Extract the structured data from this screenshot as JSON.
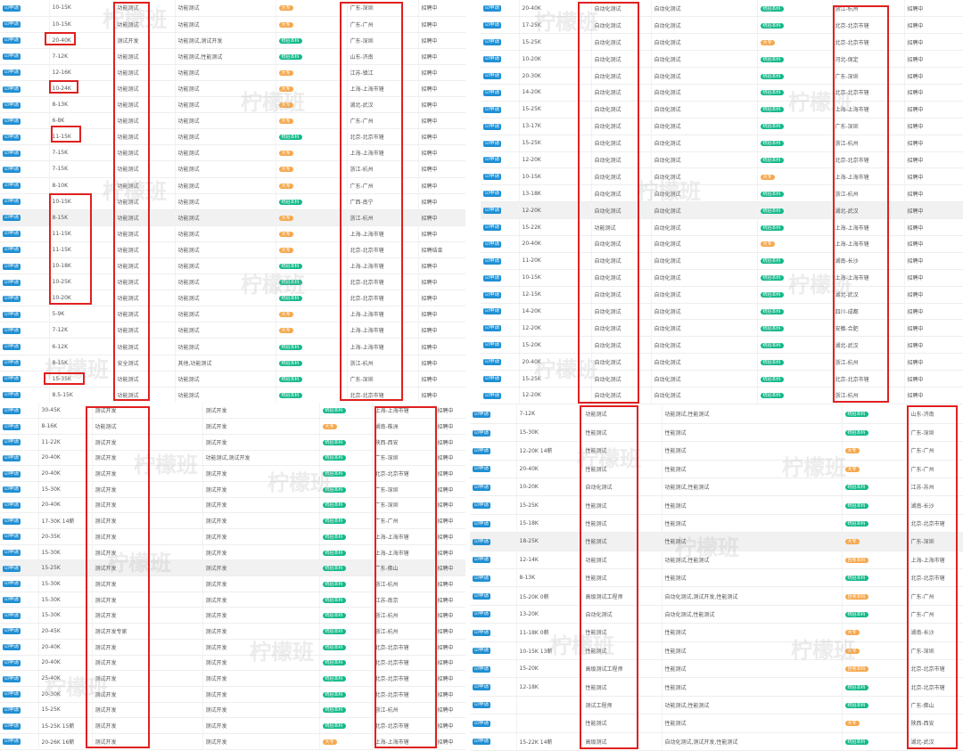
{
  "apply_label": "申请",
  "colors": {
    "apply": "#1e8fd4",
    "green": "#13b889",
    "orange": "#f5a84d",
    "highlight": "#e02020"
  },
  "badge_colors": {
    "统招本科": "green",
    "大专": "orange",
    "自考本科": "orange"
  },
  "watermark": "柠檬班",
  "panels": [
    {
      "rows": [
        [
          "10-15K",
          "功能测试",
          "功能测试",
          "大专",
          "广东-深圳",
          "招聘中"
        ],
        [
          "10-15K",
          "功能测试",
          "功能测试",
          "大专",
          "广东-广州",
          "招聘中"
        ],
        [
          "20-40K",
          "测试开发",
          "功能测试,测试开发",
          "统招本科",
          "广东-深圳",
          "招聘中"
        ],
        [
          "7-12K",
          "功能测试",
          "功能测试,性能测试",
          "统招本科",
          "山东-济南",
          "招聘中"
        ],
        [
          "12-16K",
          "功能测试",
          "功能测试",
          "大专",
          "江苏-镇江",
          "招聘中"
        ],
        [
          "10-24K",
          "功能测试",
          "功能测试",
          "大专",
          "上海-上海市辖",
          "招聘中"
        ],
        [
          "8-13K",
          "功能测试",
          "功能测试",
          "大专",
          "湖北-武汉",
          "招聘中"
        ],
        [
          "6-8K",
          "功能测试",
          "功能测试",
          "大专",
          "广东-广州",
          "招聘中"
        ],
        [
          "11-15K",
          "功能测试",
          "功能测试",
          "统招本科",
          "北京-北京市辖",
          "招聘中"
        ],
        [
          "7-15K",
          "功能测试",
          "功能测试",
          "大专",
          "上海-上海市辖",
          "招聘中"
        ],
        [
          "7-15K",
          "功能测试",
          "功能测试",
          "大专",
          "浙江-杭州",
          "招聘中"
        ],
        [
          "8-10K",
          "功能测试",
          "功能测试",
          "大专",
          "广东-广州",
          "招聘中"
        ],
        [
          "10-15K",
          "功能测试",
          "功能测试",
          "统招本科",
          "广西-南宁",
          "招聘中"
        ],
        [
          "8-15K",
          "功能测试",
          "功能测试",
          "大专",
          "浙江-杭州",
          "招聘中"
        ],
        [
          "11-15K",
          "功能测试",
          "功能测试",
          "大专",
          "上海-上海市辖",
          "招聘中"
        ],
        [
          "11-15K",
          "功能测试",
          "功能测试",
          "大专",
          "北京-北京市辖",
          "招聘结束"
        ],
        [
          "10-18K",
          "功能测试",
          "功能测试",
          "统招本科",
          "上海-上海市辖",
          "招聘中"
        ],
        [
          "10-25K",
          "功能测试",
          "功能测试",
          "统招本科",
          "北京-北京市辖",
          "招聘中"
        ],
        [
          "10-20K",
          "功能测试",
          "功能测试",
          "统招本科",
          "北京-北京市辖",
          "招聘中"
        ],
        [
          "5-9K",
          "功能测试",
          "功能测试",
          "大专",
          "上海-上海市辖",
          "招聘中"
        ],
        [
          "7-12K",
          "功能测试",
          "功能测试",
          "大专",
          "上海-上海市辖",
          "招聘中"
        ],
        [
          "6-12K",
          "功能测试",
          "功能测试",
          "统招本科",
          "上海-上海市辖",
          "招聘中"
        ],
        [
          "8-15K",
          "安全测试",
          "其他,功能测试",
          "统招本科",
          "浙江-杭州",
          "招聘中"
        ],
        [
          "15-35K",
          "功能测试",
          "功能测试",
          "统招本科",
          "广东-深圳",
          "招聘中"
        ],
        [
          "8.5-15K",
          "功能测试",
          "功能测试",
          "统招本科",
          "北京-北京市辖",
          "招聘中"
        ]
      ]
    },
    {
      "rows": [
        [
          "20-40K",
          "自动化测试",
          "自动化测试",
          "统招本科",
          "浙江-杭州",
          "招聘中"
        ],
        [
          "17-25K",
          "自动化测试",
          "自动化测试",
          "统招本科",
          "北京-北京市辖",
          "招聘中"
        ],
        [
          "15-25K",
          "自动化测试",
          "自动化测试",
          "大专",
          "北京-北京市辖",
          "招聘中"
        ],
        [
          "10-20K",
          "自动化测试",
          "自动化测试",
          "统招本科",
          "河北-保定",
          "招聘中"
        ],
        [
          "20-30K",
          "自动化测试",
          "自动化测试",
          "统招本科",
          "广东-深圳",
          "招聘中"
        ],
        [
          "14-20K",
          "自动化测试",
          "自动化测试",
          "统招本科",
          "北京-北京市辖",
          "招聘中"
        ],
        [
          "15-25K",
          "自动化测试",
          "自动化测试",
          "统招本科",
          "上海-上海市辖",
          "招聘中"
        ],
        [
          "13-17K",
          "自动化测试",
          "自动化测试",
          "统招本科",
          "广东-深圳",
          "招聘中"
        ],
        [
          "15-25K",
          "自动化测试",
          "自动化测试",
          "统招本科",
          "浙江-杭州",
          "招聘中"
        ],
        [
          "12-20K",
          "自动化测试",
          "自动化测试",
          "统招本科",
          "北京-北京市辖",
          "招聘中"
        ],
        [
          "10-15K",
          "自动化测试",
          "自动化测试",
          "大专",
          "上海-上海市辖",
          "招聘中"
        ],
        [
          "13-18K",
          "自动化测试",
          "自动化测试",
          "统招本科",
          "浙江-杭州",
          "招聘中"
        ],
        [
          "12-20K",
          "自动化测试",
          "自动化测试",
          "统招本科",
          "湖北-武汉",
          "招聘中"
        ],
        [
          "15-22K",
          "功能测试",
          "自动化测试",
          "统招本科",
          "上海-上海市辖",
          "招聘中"
        ],
        [
          "20-40K",
          "自动化测试",
          "自动化测试",
          "大专",
          "上海-上海市辖",
          "招聘中"
        ],
        [
          "11-20K",
          "自动化测试",
          "自动化测试",
          "统招本科",
          "湖南-长沙",
          "招聘中"
        ],
        [
          "10-15K",
          "自动化测试",
          "自动化测试",
          "统招本科",
          "上海-上海市辖",
          "招聘中"
        ],
        [
          "12-15K",
          "自动化测试",
          "自动化测试",
          "统招本科",
          "湖北-武汉",
          "招聘中"
        ],
        [
          "14-20K",
          "自动化测试",
          "自动化测试",
          "统招本科",
          "四川-成都",
          "招聘中"
        ],
        [
          "12-20K",
          "自动化测试",
          "自动化测试",
          "统招本科",
          "安徽-合肥",
          "招聘中"
        ],
        [
          "15-20K",
          "自动化测试",
          "自动化测试",
          "统招本科",
          "湖北-武汉",
          "招聘中"
        ],
        [
          "20-40K",
          "自动化测试",
          "自动化测试",
          "统招本科",
          "浙江-杭州",
          "招聘中"
        ],
        [
          "15-25K",
          "自动化测试",
          "自动化测试",
          "统招本科",
          "北京-北京市辖",
          "招聘中"
        ],
        [
          "12-20K",
          "自动化测试",
          "自动化测试",
          "统招本科",
          "浙江-杭州",
          "招聘中"
        ]
      ]
    },
    {
      "rows": [
        [
          "30-45K",
          "测试开发",
          "测试开发",
          "统招本科",
          "上海-上海市辖",
          "招聘中"
        ],
        [
          "8-16K",
          "功能测试",
          "测试开发",
          "大专",
          "湖南-株洲",
          "招聘中"
        ],
        [
          "11-22K",
          "测试开发",
          "测试开发",
          "统招本科",
          "陕西-西安",
          "招聘中"
        ],
        [
          "20-40K",
          "测试开发",
          "功能测试,测试开发",
          "统招本科",
          "广东-深圳",
          "招聘中"
        ],
        [
          "20-40K",
          "测试开发",
          "测试开发",
          "统招本科",
          "北京-北京市辖",
          "招聘中"
        ],
        [
          "15-30K",
          "测试开发",
          "测试开发",
          "统招本科",
          "广东-深圳",
          "招聘中"
        ],
        [
          "20-40K",
          "测试开发",
          "测试开发",
          "统招本科",
          "广东-深圳",
          "招聘中"
        ],
        [
          "17-30K 14薪",
          "测试开发",
          "测试开发",
          "统招本科",
          "广东-广州",
          "招聘中"
        ],
        [
          "20-35K",
          "测试开发",
          "测试开发",
          "统招本科",
          "上海-上海市辖",
          "招聘中"
        ],
        [
          "15-30K",
          "测试开发",
          "测试开发",
          "统招本科",
          "上海-上海市辖",
          "招聘中"
        ],
        [
          "15-25K",
          "测试开发",
          "测试开发",
          "统招本科",
          "广东-佛山",
          "招聘中"
        ],
        [
          "15-30K",
          "测试开发",
          "测试开发",
          "统招本科",
          "浙江-杭州",
          "招聘中"
        ],
        [
          "15-30K",
          "测试开发",
          "测试开发",
          "统招本科",
          "江苏-南京",
          "招聘中"
        ],
        [
          "15-30K",
          "测试开发",
          "测试开发",
          "统招本科",
          "浙江-杭州",
          "招聘中"
        ],
        [
          "20-45K",
          "测试开发专家",
          "测试开发",
          "统招本科",
          "浙江-杭州",
          "招聘中"
        ],
        [
          "20-40K",
          "测试开发",
          "测试开发",
          "统招本科",
          "北京-北京市辖",
          "招聘中"
        ],
        [
          "20-40K",
          "测试开发",
          "测试开发",
          "统招本科",
          "北京-北京市辖",
          "招聘中"
        ],
        [
          "25-40K",
          "测试开发",
          "测试开发",
          "统招本科",
          "北京-北京市辖",
          "招聘中"
        ],
        [
          "20-30K",
          "测试开发",
          "测试开发",
          "统招本科",
          "北京-北京市辖",
          "招聘中"
        ],
        [
          "15-25K",
          "测试开发",
          "测试开发",
          "统招本科",
          "浙江-杭州",
          "招聘中"
        ],
        [
          "15-25K 15薪",
          "测试开发",
          "测试开发",
          "统招本科",
          "北京-北京市辖",
          "招聘中"
        ],
        [
          "20-26K 16薪",
          "测试开发",
          "测试开发",
          "大专",
          "上海-上海市辖",
          "招聘中"
        ]
      ]
    },
    {
      "rows": [
        [
          "7-12K",
          "功能测试",
          "功能测试,性能测试",
          "统招本科",
          "山东-济南"
        ],
        [
          "15-30K",
          "性能测试",
          "性能测试",
          "统招本科",
          "广东-深圳"
        ],
        [
          "12-20K 14薪",
          "性能测试",
          "性能测试",
          "大专",
          "广东-广州"
        ],
        [
          "20-40K",
          "性能测试",
          "性能测试",
          "大专",
          "广东-广州"
        ],
        [
          "10-20K",
          "自动化测试",
          "功能测试,性能测试",
          "统招本科",
          "江苏-苏州"
        ],
        [
          "15-25K",
          "性能测试",
          "性能测试",
          "统招本科",
          "湖南-长沙"
        ],
        [
          "15-18K",
          "性能测试",
          "性能测试",
          "统招本科",
          "北京-北京市辖"
        ],
        [
          "18-25K",
          "性能测试",
          "性能测试",
          "大专",
          "广东-深圳"
        ],
        [
          "12-14K",
          "功能测试",
          "功能测试,性能测试",
          "自考本科",
          "上海-上海市辖"
        ],
        [
          "8-13K",
          "性能测试",
          "性能测试",
          "统招本科",
          "北京-北京市辖"
        ],
        [
          "15-20K 0薪",
          "高级测试工程师",
          "自动化测试,测试开发,性能测试",
          "自考本科",
          "广东-广州"
        ],
        [
          "13-20K",
          "自动化测试",
          "自动化测试,性能测试",
          "统招本科",
          "广东-广州"
        ],
        [
          "11-18K 0薪",
          "性能测试",
          "性能测试",
          "大专",
          "湖南-长沙"
        ],
        [
          "10-15K 13薪",
          "性能测试",
          "性能测试",
          "大专",
          "广东-深圳"
        ],
        [
          "15-20K",
          "高级测试工程师",
          "性能测试",
          "自考本科",
          "北京-北京市辖"
        ],
        [
          "12-18K",
          "性能测试",
          "性能测试",
          "统招本科",
          "北京-北京市辖"
        ],
        [
          "",
          "测试工程师",
          "功能测试,性能测试",
          "统招本科",
          "广东-佛山"
        ],
        [
          "",
          "性能测试",
          "性能测试",
          "大专",
          "陕西-西安"
        ],
        [
          "15-22K 14薪",
          "高级测试",
          "自动化测试,测试开发,性能测试",
          "统招本科",
          "湖北-武汉"
        ]
      ]
    }
  ]
}
